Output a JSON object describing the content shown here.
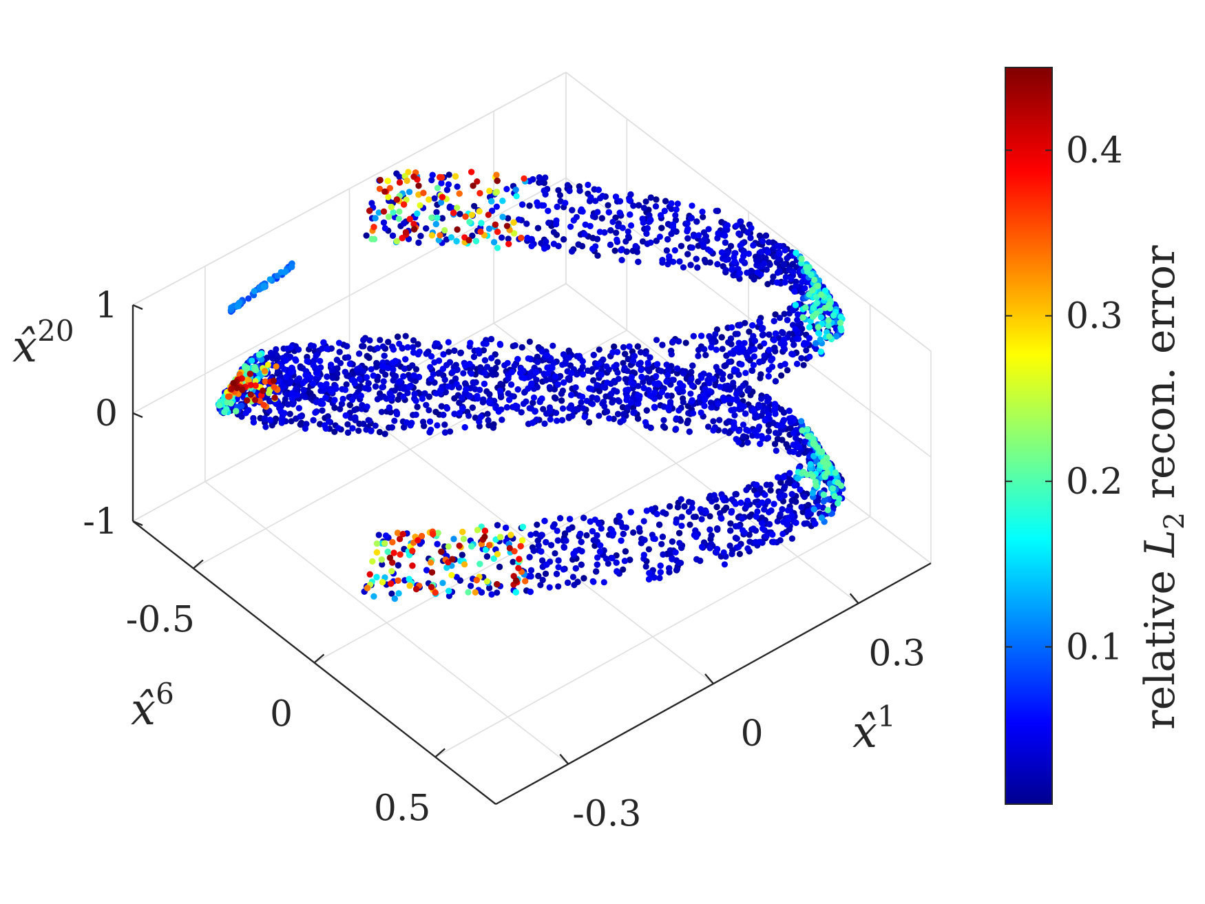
{
  "chart_data": {
    "type": "scatter",
    "title": "",
    "projection": "3d",
    "grid": true,
    "axes": {
      "x": {
        "label_base": "x̂",
        "label_sup": "1",
        "ticks": [
          "-0.3",
          "0",
          "0.3"
        ],
        "tick_values": [
          -0.3,
          0,
          0.3
        ],
        "range": [
          -0.45,
          0.45
        ]
      },
      "y": {
        "label_base": "x̂",
        "label_sup": "6",
        "ticks": [
          "-0.5",
          "0",
          "0.5"
        ],
        "tick_values": [
          -0.5,
          0,
          0.5
        ],
        "range": [
          -0.75,
          0.75
        ]
      },
      "z": {
        "label_base": "x̂",
        "label_sup": "20",
        "ticks": [
          "1",
          "0",
          "-1"
        ],
        "tick_values": [
          1,
          0,
          -1
        ],
        "range": [
          -1,
          1
        ]
      }
    },
    "colorbar": {
      "label_pre": "relative ",
      "label_var": "L",
      "label_sub": "2",
      "label_post": " recon. error",
      "ticks": [
        "0.1",
        "0.2",
        "0.3",
        "0.4"
      ],
      "tick_values": [
        0.1,
        0.2,
        0.3,
        0.4
      ],
      "range": [
        0.005,
        0.45
      ],
      "colormap": "jet"
    },
    "series": [
      {
        "shape": "helical band (S-shaped sheet) spanning two turns",
        "approx_points": 9000,
        "error_typical": 0.03,
        "high_error_regions": [
          {
            "where": "upper-left tip",
            "error_range": [
              0.15,
              0.45
            ]
          },
          {
            "where": "central fold",
            "error_range": [
              0.25,
              0.45
            ]
          },
          {
            "where": "lower-right tip",
            "error_range": [
              0.15,
              0.45
            ]
          },
          {
            "where": "outer left and right edges",
            "error_range": [
              0.1,
              0.25
            ]
          }
        ]
      }
    ]
  }
}
